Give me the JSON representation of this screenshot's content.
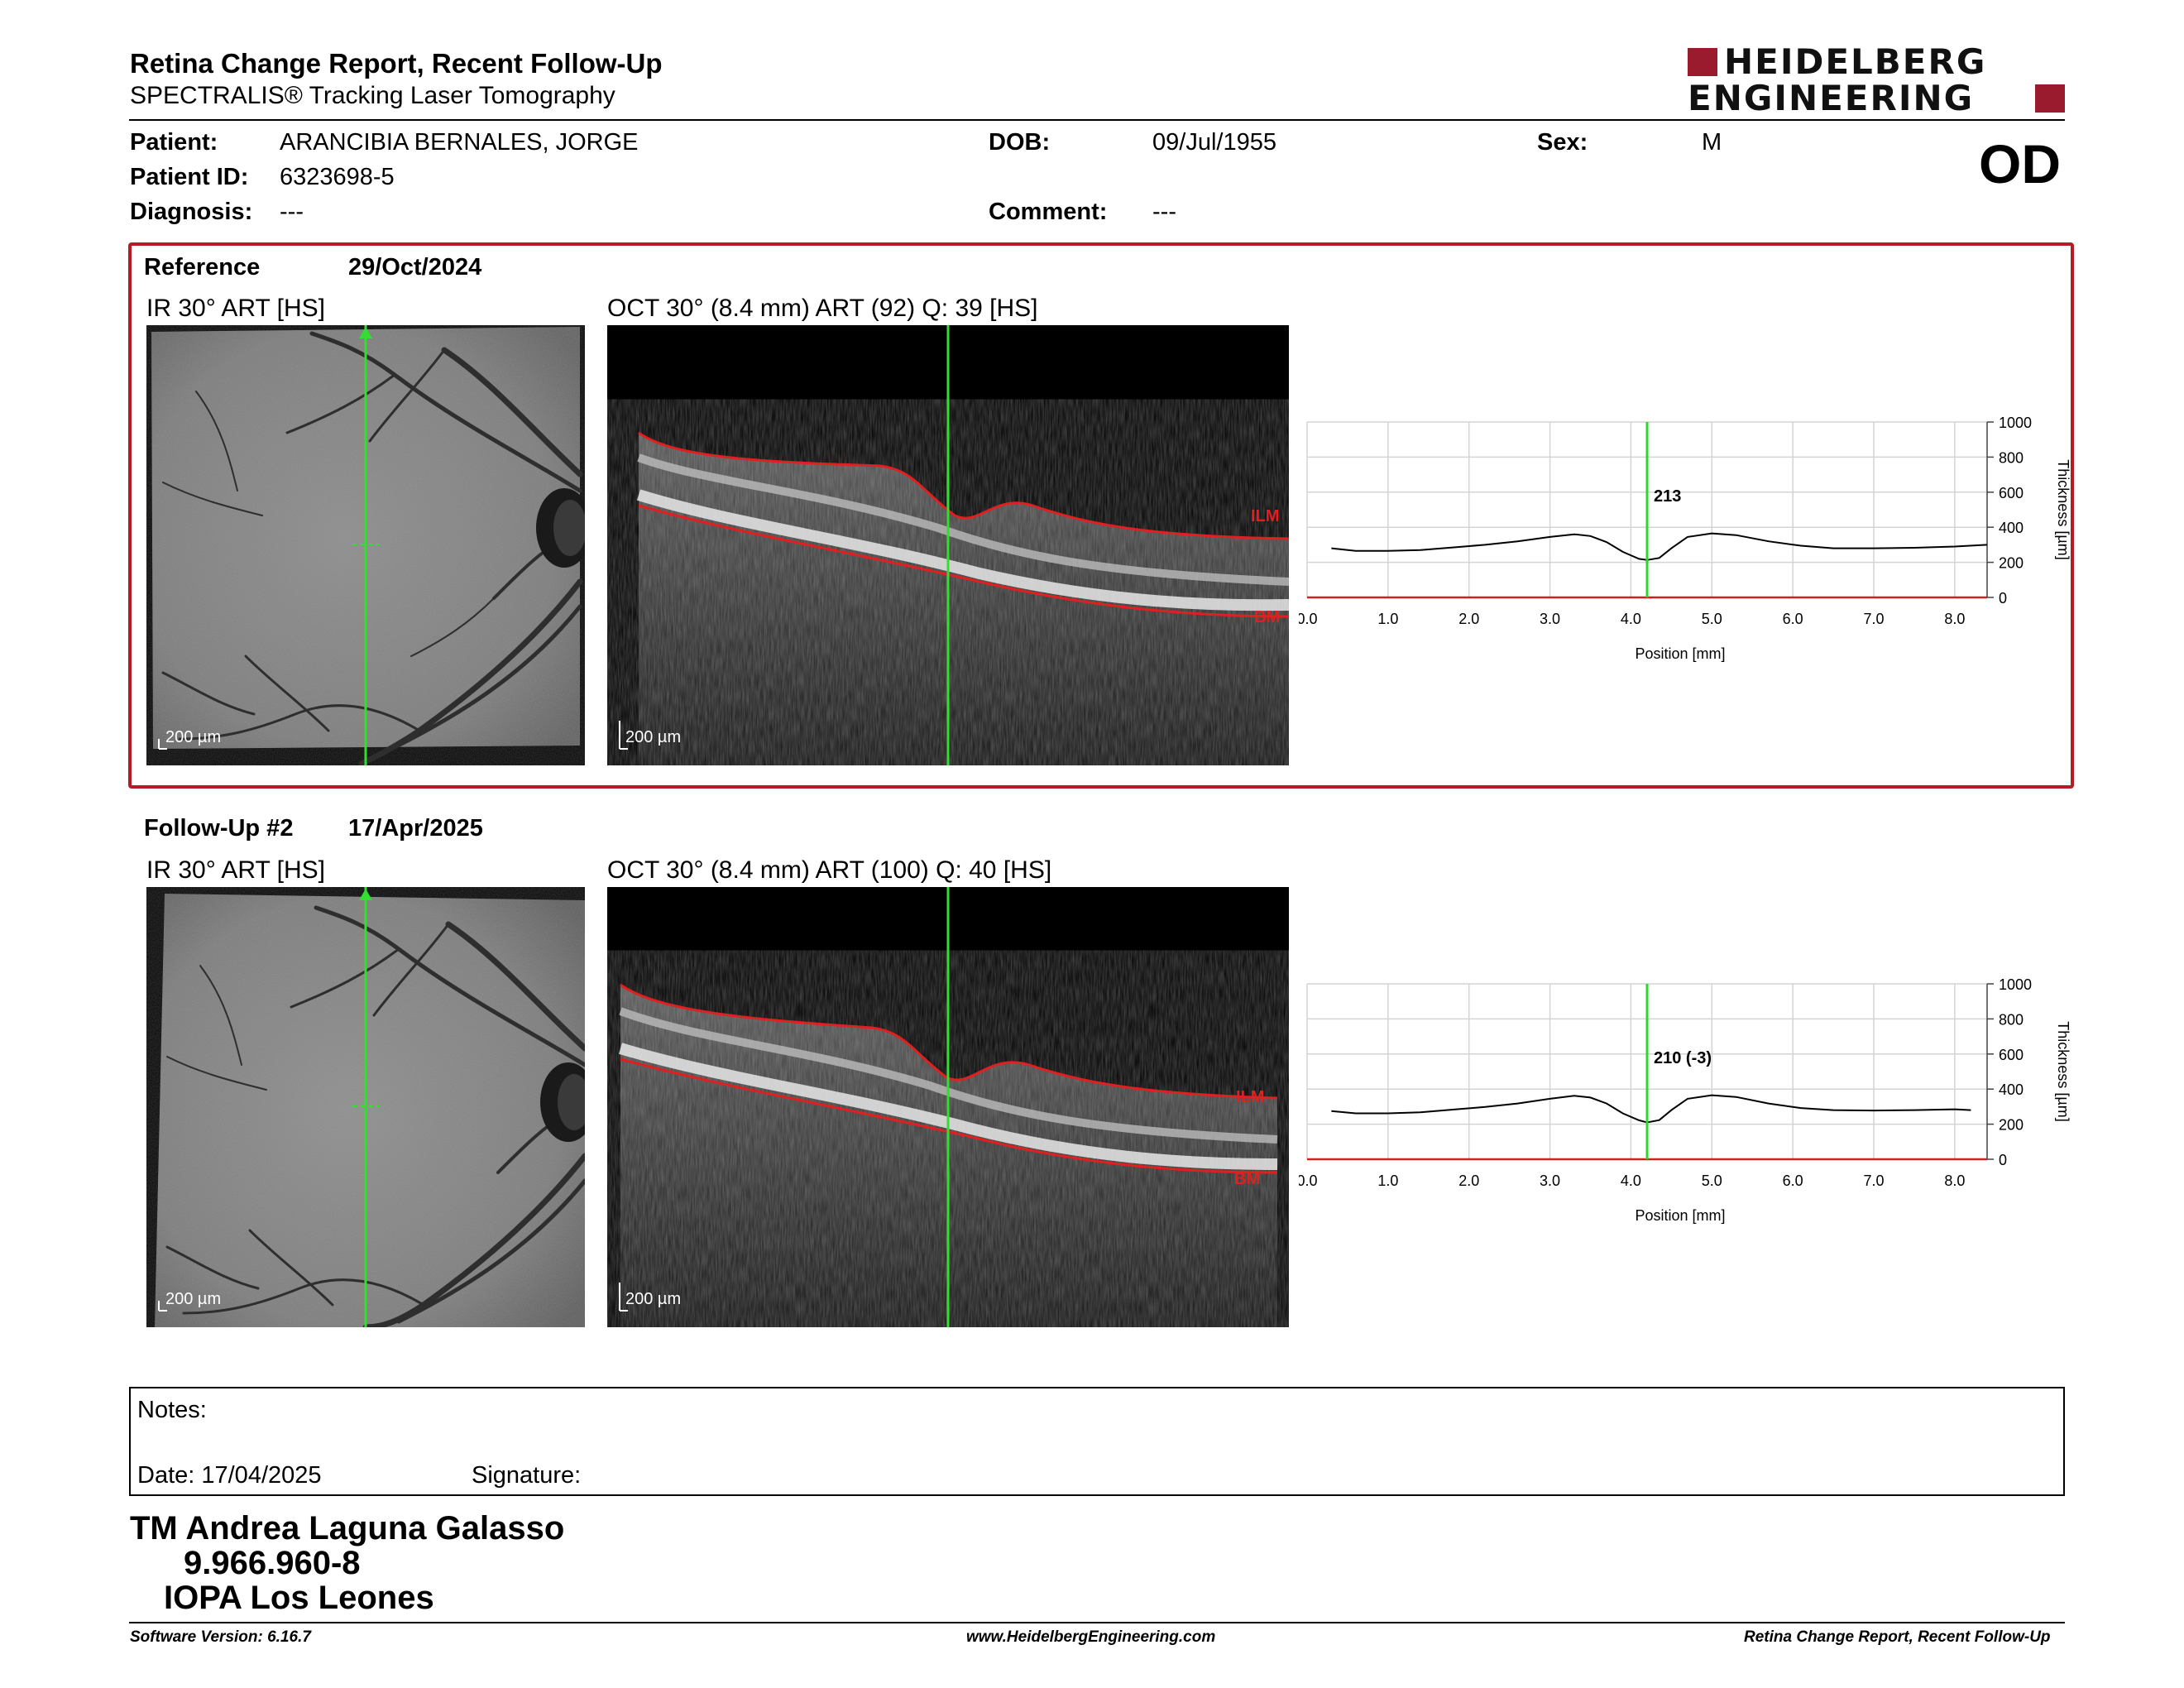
{
  "header": {
    "title": "Retina Change Report, Recent Follow-Up",
    "subtitle": "SPECTRALIS® Tracking Laser Tomography",
    "logo_line1": "HEIDELBERG",
    "logo_line2": "ENGINEERING",
    "logo_color": "#9b1b2e",
    "eye": "OD"
  },
  "patient": {
    "patient_label": "Patient:",
    "patient_value": "ARANCIBIA BERNALES, JORGE",
    "id_label": "Patient ID:",
    "id_value": "6323698-5",
    "diagnosis_label": "Diagnosis:",
    "diagnosis_value": "---",
    "dob_label": "DOB:",
    "dob_value": "09/Jul/1955",
    "comment_label": "Comment:",
    "comment_value": "---",
    "sex_label": "Sex:",
    "sex_value": "M"
  },
  "reference": {
    "label": "Reference",
    "date": "29/Oct/2024",
    "ir_title": "IR 30° ART [HS]",
    "oct_title": "OCT 30° (8.4 mm) ART (92) Q: 39 [HS]",
    "ir_scale": "200 µm",
    "oct_scale": "200 µm",
    "ilm_label": "ILM",
    "bm_label": "BM",
    "frame_color": "#b71c25"
  },
  "followup": {
    "label": "Follow-Up #2",
    "date": "17/Apr/2025",
    "ir_title": "IR 30° ART [HS]",
    "oct_title": "OCT 30° (8.4 mm) ART (100) Q: 40 [HS]",
    "ir_scale": "200 µm",
    "oct_scale": "200 µm",
    "ilm_label": "ILM",
    "bm_label": "BM"
  },
  "chart_data": [
    {
      "type": "line",
      "ylabel": "Thickness [µm]",
      "xlabel": "Position [mm]",
      "xlim": [
        0.0,
        8.4
      ],
      "ylim": [
        0,
        1000
      ],
      "xticks": [
        "0.0",
        "1.0",
        "2.0",
        "3.0",
        "4.0",
        "5.0",
        "6.0",
        "7.0",
        "8.0"
      ],
      "yticks": [
        "0",
        "200",
        "400",
        "600",
        "800",
        "1000"
      ],
      "cursor_x": 4.2,
      "cursor_label": "213",
      "cursor_color": "#2bd92b",
      "baseline_color": "#cc2222",
      "series": [
        {
          "x": [
            0.3,
            0.6,
            1.0,
            1.4,
            1.8,
            2.2,
            2.6,
            3.0,
            3.3,
            3.5,
            3.7,
            3.9,
            4.1,
            4.2,
            4.35,
            4.5,
            4.7,
            5.0,
            5.3,
            5.7,
            6.1,
            6.5,
            7.0,
            7.5,
            8.0,
            8.4
          ],
          "y": [
            280,
            265,
            265,
            270,
            285,
            300,
            320,
            345,
            360,
            350,
            315,
            260,
            220,
            213,
            225,
            280,
            345,
            365,
            355,
            320,
            295,
            280,
            280,
            283,
            290,
            300
          ]
        }
      ]
    },
    {
      "type": "line",
      "ylabel": "Thickness [µm]",
      "xlabel": "Position [mm]",
      "xlim": [
        0.0,
        8.4
      ],
      "ylim": [
        0,
        1000
      ],
      "xticks": [
        "0.0",
        "1.0",
        "2.0",
        "3.0",
        "4.0",
        "5.0",
        "6.0",
        "7.0",
        "8.0"
      ],
      "yticks": [
        "0",
        "200",
        "400",
        "600",
        "800",
        "1000"
      ],
      "cursor_x": 4.2,
      "cursor_label": "210 (-3)",
      "cursor_color": "#2bd92b",
      "baseline_color": "#cc2222",
      "series": [
        {
          "x": [
            0.3,
            0.6,
            1.0,
            1.4,
            1.8,
            2.2,
            2.6,
            3.0,
            3.3,
            3.5,
            3.7,
            3.9,
            4.1,
            4.2,
            4.35,
            4.5,
            4.7,
            5.0,
            5.3,
            5.7,
            6.1,
            6.5,
            7.0,
            7.5,
            8.0,
            8.2
          ],
          "y": [
            275,
            262,
            262,
            268,
            283,
            298,
            318,
            345,
            362,
            352,
            318,
            262,
            222,
            210,
            223,
            280,
            345,
            365,
            355,
            318,
            292,
            280,
            278,
            280,
            285,
            280
          ]
        }
      ]
    }
  ],
  "notes": {
    "notes_label": "Notes:",
    "date_label": "Date: 17/04/2025",
    "signature_label": "Signature:"
  },
  "signatory": {
    "name": "TM Andrea Laguna Galasso",
    "id": "9.966.960-8",
    "org": "IOPA Los Leones"
  },
  "footer": {
    "software": "Software Version: 6.16.7",
    "website": "www.HeidelbergEngineering.com",
    "report": "Retina Change Report, Recent Follow-Up"
  }
}
